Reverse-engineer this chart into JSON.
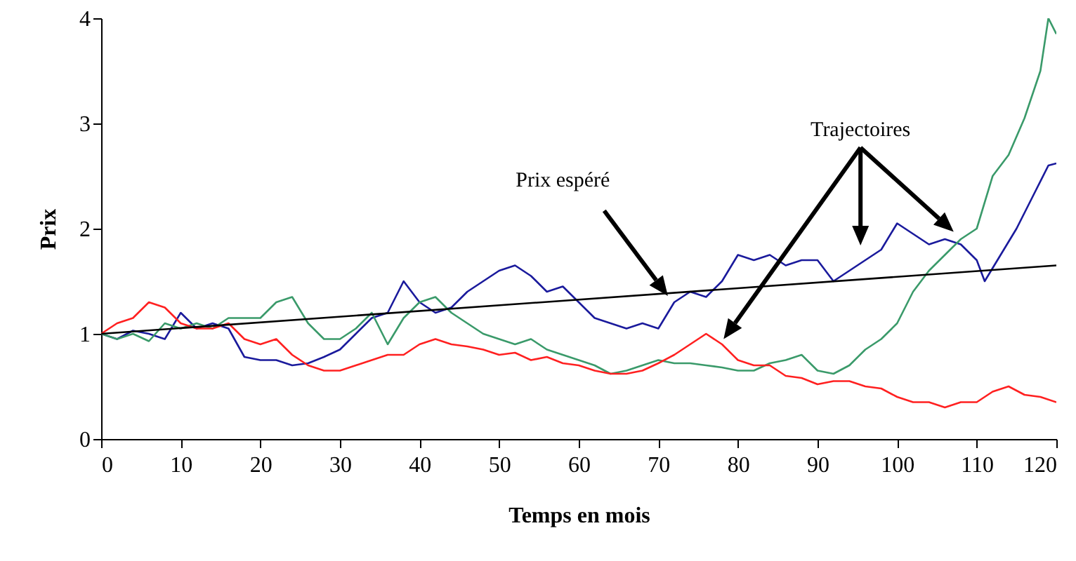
{
  "chart_data": {
    "type": "line",
    "xlabel": "Temps en mois",
    "ylabel": "Prix",
    "xlim": [
      0,
      120
    ],
    "xticks": [
      0,
      10,
      20,
      30,
      40,
      50,
      60,
      70,
      80,
      90,
      100,
      110,
      120
    ],
    "ylim": [
      0,
      4
    ],
    "yticks": [
      0,
      1,
      2,
      3,
      4
    ],
    "grid": false,
    "annotations": [
      "Prix espéré",
      "Trajectoires"
    ],
    "x": [
      0,
      2,
      4,
      6,
      8,
      10,
      12,
      14,
      16,
      18,
      20,
      22,
      24,
      26,
      28,
      30,
      32,
      34,
      36,
      38,
      40,
      42,
      44,
      46,
      48,
      50,
      52,
      54,
      56,
      58,
      60,
      62,
      64,
      66,
      68,
      70,
      72,
      74,
      76,
      78,
      80,
      82,
      84,
      86,
      88,
      90,
      92,
      94,
      96,
      98,
      100,
      102,
      104,
      106,
      108,
      110,
      112,
      114,
      116,
      118,
      120
    ],
    "series": [
      {
        "color": "#1a1a9c",
        "x": [
          0,
          2,
          4,
          6,
          8,
          10,
          12,
          14,
          16,
          18,
          20,
          22,
          24,
          26,
          28,
          30,
          32,
          34,
          36,
          38,
          40,
          42,
          44,
          46,
          48,
          50,
          52,
          54,
          56,
          58,
          60,
          62,
          64,
          66,
          68,
          70,
          72,
          74,
          76,
          78,
          80,
          82,
          84,
          86,
          88,
          90,
          92,
          94,
          96,
          98,
          100,
          102,
          104,
          106,
          108,
          110,
          111,
          113,
          115,
          117,
          119,
          120
        ],
        "values": [
          1.0,
          0.95,
          1.03,
          1.0,
          0.95,
          1.2,
          1.05,
          1.1,
          1.05,
          0.78,
          0.75,
          0.75,
          0.7,
          0.72,
          0.78,
          0.85,
          1.0,
          1.15,
          1.2,
          1.5,
          1.3,
          1.2,
          1.25,
          1.4,
          1.5,
          1.6,
          1.65,
          1.55,
          1.4,
          1.45,
          1.3,
          1.15,
          1.1,
          1.05,
          1.1,
          1.05,
          1.3,
          1.4,
          1.35,
          1.5,
          1.75,
          1.7,
          1.75,
          1.65,
          1.7,
          1.7,
          1.5,
          1.6,
          1.7,
          1.8,
          2.05,
          1.95,
          1.85,
          1.9,
          1.85,
          1.7,
          1.5,
          1.75,
          2.0,
          2.3,
          2.6,
          2.62
        ]
      },
      {
        "color": "#3a9a6a",
        "x": [
          0,
          2,
          4,
          6,
          8,
          10,
          12,
          14,
          16,
          18,
          20,
          22,
          24,
          26,
          28,
          30,
          32,
          34,
          36,
          38,
          40,
          42,
          44,
          46,
          48,
          50,
          52,
          54,
          56,
          58,
          60,
          62,
          64,
          66,
          68,
          70,
          72,
          74,
          76,
          78,
          80,
          82,
          84,
          86,
          88,
          90,
          92,
          94,
          96,
          98,
          100,
          102,
          104,
          106,
          108,
          110,
          112,
          114,
          116,
          118,
          119,
          120
        ],
        "values": [
          1.0,
          0.95,
          1.0,
          0.93,
          1.1,
          1.05,
          1.1,
          1.05,
          1.15,
          1.15,
          1.15,
          1.3,
          1.35,
          1.1,
          0.95,
          0.95,
          1.05,
          1.2,
          0.9,
          1.15,
          1.3,
          1.35,
          1.2,
          1.1,
          1.0,
          0.95,
          0.9,
          0.95,
          0.85,
          0.8,
          0.75,
          0.7,
          0.62,
          0.65,
          0.7,
          0.75,
          0.72,
          0.72,
          0.7,
          0.68,
          0.65,
          0.65,
          0.72,
          0.75,
          0.8,
          0.65,
          0.62,
          0.7,
          0.85,
          0.95,
          1.1,
          1.4,
          1.6,
          1.75,
          1.9,
          2.0,
          2.5,
          2.7,
          3.05,
          3.5,
          4.0,
          3.85
        ]
      },
      {
        "color": "#ff2020",
        "values": [
          1.0,
          1.1,
          1.15,
          1.3,
          1.25,
          1.1,
          1.05,
          1.05,
          1.1,
          0.95,
          0.9,
          0.95,
          0.8,
          0.7,
          0.65,
          0.65,
          0.7,
          0.75,
          0.8,
          0.8,
          0.9,
          0.95,
          0.9,
          0.88,
          0.85,
          0.8,
          0.82,
          0.75,
          0.78,
          0.72,
          0.7,
          0.65,
          0.62,
          0.62,
          0.65,
          0.72,
          0.8,
          0.9,
          1.0,
          0.9,
          0.75,
          0.7,
          0.7,
          0.6,
          0.58,
          0.52,
          0.55,
          0.55,
          0.5,
          0.48,
          0.4,
          0.35,
          0.35,
          0.3,
          0.35,
          0.35,
          0.45,
          0.5,
          0.42,
          0.4,
          0.35
        ]
      },
      {
        "color": "#000000",
        "x": [
          0,
          120
        ],
        "values": [
          1.0,
          1.65
        ]
      }
    ]
  }
}
